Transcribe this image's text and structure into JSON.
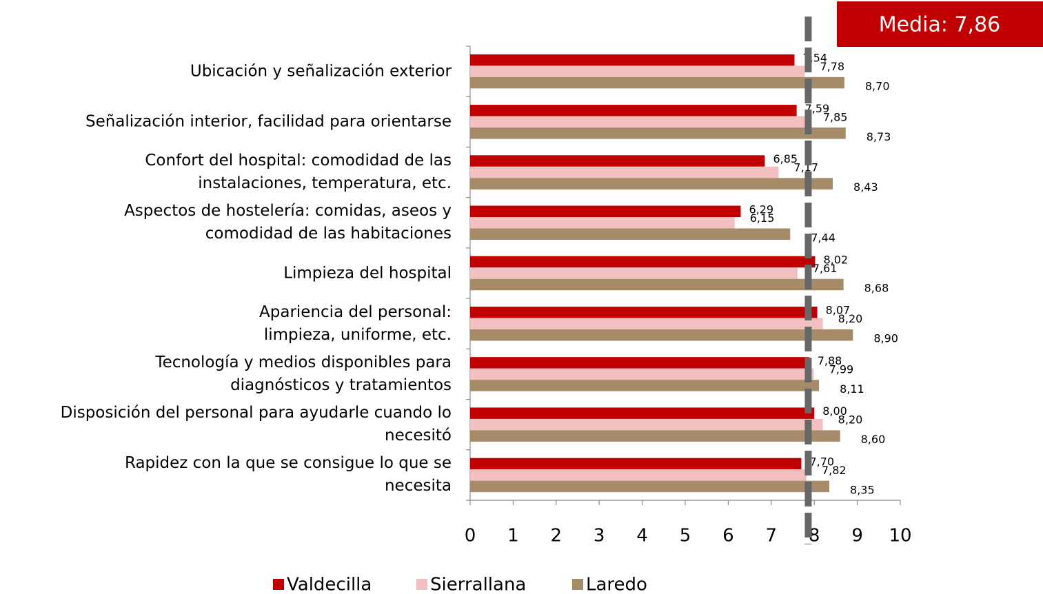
{
  "chart_data": {
    "type": "bar",
    "orientation": "horizontal",
    "categories": [
      "Ubicación y señalización exterior",
      "Señalización interior, facilidad para orientarse",
      "Confort del hospital: comodidad de las\ninstalaciones, temperatura, etc.",
      "Aspectos de hostelería: comidas, aseos y\ncomodidad de las habitaciones",
      "Limpieza del hospital",
      "Apariencia del personal:\nlimpieza, uniforme, etc.",
      "Tecnología y medios disponibles para\ndiagnósticos y tratamientos",
      "Disposición del personal para ayudarle cuando lo\nnecesitó",
      "Rapidez con la que se consigue lo que se\nnecesita"
    ],
    "series": [
      {
        "name": "Valdecilla",
        "color": "#c00000",
        "values": [
          7.54,
          7.59,
          6.85,
          6.29,
          8.02,
          8.07,
          7.88,
          8.0,
          7.7
        ],
        "value_labels": [
          "7,54",
          "7,59",
          "6,85",
          "6,29",
          "8,02",
          "8,07",
          "7,88",
          "8,00",
          "7,70"
        ]
      },
      {
        "name": "Sierrallana",
        "color": "#f2c0c0",
        "values": [
          7.78,
          7.85,
          7.17,
          6.15,
          7.61,
          8.2,
          7.99,
          8.2,
          7.82
        ],
        "value_labels": [
          "7,78",
          "7,85",
          "7,17",
          "6,15",
          "7,61",
          "8,20",
          "7,99",
          "8,20",
          "7,82"
        ]
      },
      {
        "name": "Laredo",
        "color": "#a68b68",
        "values": [
          8.7,
          8.73,
          8.43,
          7.44,
          8.68,
          8.9,
          8.11,
          8.6,
          8.35
        ],
        "value_labels": [
          "8,70",
          "8,73",
          "8,43",
          "7,44",
          "8,68",
          "8,90",
          "8,11",
          "8,60",
          "8,35"
        ]
      }
    ],
    "xlim": [
      0,
      10
    ],
    "xticks": [
      0,
      1,
      2,
      3,
      4,
      5,
      6,
      7,
      8,
      9,
      10
    ],
    "mean": 7.86,
    "mean_label": "Media: 7,86",
    "mean_color": "#666666",
    "mean_box_color": "#c00000",
    "legend": "bottom"
  }
}
